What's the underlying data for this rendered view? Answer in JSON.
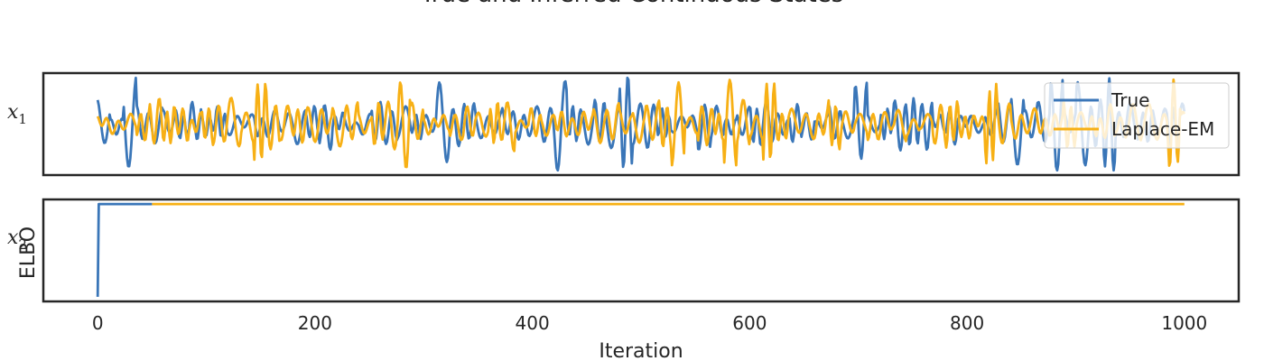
{
  "chart_data": [
    {
      "type": "line",
      "panel": "top",
      "title": "True and Inferred Continuous States",
      "ylabel": "x",
      "ylabel_sub": "1",
      "xlim": [
        -50,
        1050
      ],
      "ylim": [
        -3.2,
        3.2
      ],
      "grid": false,
      "legend": {
        "placement": "top-right",
        "entries": [
          "True",
          "Laplace-EM"
        ]
      },
      "series": [
        {
          "name": "True",
          "color": "#3a76b8",
          "x_range": [
            0,
            1000
          ],
          "n_points": 1000,
          "oscillation_period": 10,
          "typical_amplitude": 1.0,
          "peak_amplitude": 2.9,
          "values_note": ""
        },
        {
          "name": "Laplace-EM",
          "color": "#f7b015",
          "x_range": [
            0,
            1000
          ],
          "n_points": 1000,
          "oscillation_period": 10,
          "typical_amplitude": 1.0,
          "peak_amplitude": 2.9
        }
      ]
    },
    {
      "type": "line",
      "panel": "bottom",
      "ylabel": "ELBO",
      "ylabel_overlap": "x",
      "ylabel_overlap_sub": "2",
      "xlabel": "Iteration",
      "xlim": [
        -50,
        1050
      ],
      "x_ticks": [
        0,
        200,
        400,
        600,
        800,
        1000
      ],
      "ylim": [
        -1.05,
        0.05
      ],
      "grid": false,
      "series": [
        {
          "name": "True",
          "color": "#3a76b8",
          "x": [
            0,
            1,
            2,
            50
          ],
          "y": [
            -1.0,
            0.0,
            0.0,
            0.0
          ]
        },
        {
          "name": "Laplace-EM",
          "color": "#f7b015",
          "x": [
            50,
            1000
          ],
          "y": [
            0.0,
            0.0
          ]
        }
      ]
    }
  ],
  "colors": {
    "true": "#3a76b8",
    "laplace": "#f7b015",
    "frame": "#262626"
  }
}
